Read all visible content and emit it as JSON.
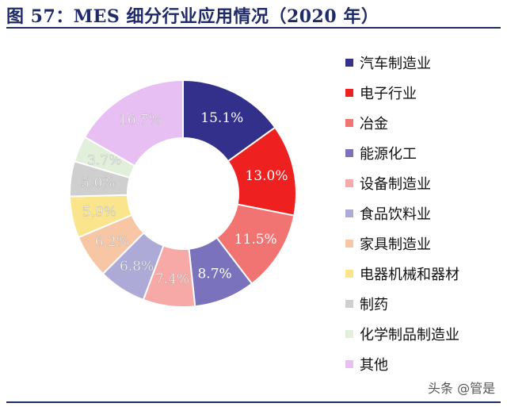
{
  "title": "图 57：MES 细分行业应用情况（2020 年）",
  "watermark": "头条 @管是",
  "chart_data": {
    "type": "pie",
    "donut": true,
    "start": "12 o'clock, clockwise",
    "legend_position": "right",
    "slices": [
      {
        "label": "汽车制造业",
        "value": 15.1,
        "value_label": "15.1%",
        "color": "#33308c"
      },
      {
        "label": "电子行业",
        "value": 13.0,
        "value_label": "13.0%",
        "color": "#ee2020"
      },
      {
        "label": "冶金",
        "value": 11.5,
        "value_label": "11.5%",
        "color": "#f27472"
      },
      {
        "label": "能源化工",
        "value": 8.7,
        "value_label": "8.7%",
        "color": "#7a72bd"
      },
      {
        "label": "设备制造业",
        "value": 7.4,
        "value_label": "7.4%",
        "color": "#f6a9a6"
      },
      {
        "label": "食品饮料业",
        "value": 6.8,
        "value_label": "6.8%",
        "color": "#aeaad7"
      },
      {
        "label": "家具制造业",
        "value": 6.2,
        "value_label": "6.2%",
        "color": "#f7c6a4"
      },
      {
        "label": "电器机械和器材",
        "value": 5.9,
        "value_label": "5.9%",
        "color": "#fae58c"
      },
      {
        "label": "制药",
        "value": 5.0,
        "value_label": "5.0%",
        "color": "#cfcfcf"
      },
      {
        "label": "化学制品制造业",
        "value": 3.7,
        "value_label": "3.7%",
        "color": "#e2efda"
      },
      {
        "label": "其他",
        "value": 16.7,
        "value_label": "16.7%",
        "color": "#e8bff3"
      }
    ]
  }
}
